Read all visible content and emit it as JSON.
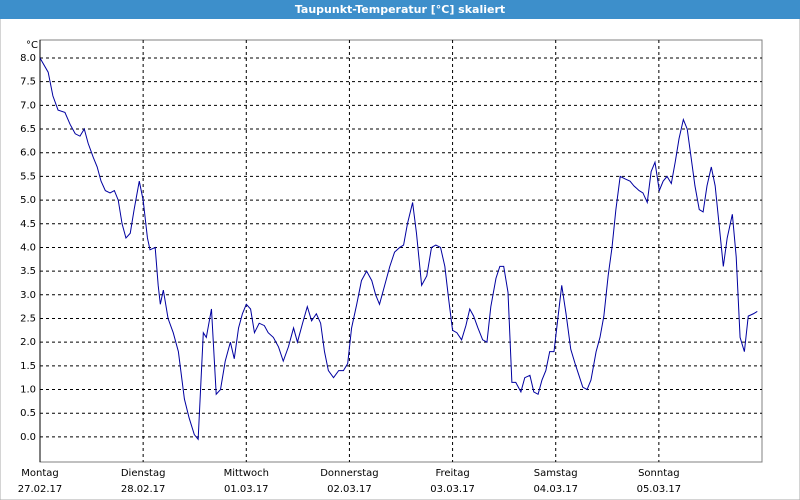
{
  "chart_data": {
    "type": "line",
    "title": "Taupunkt-Temperatur [°C] skaliert",
    "y_unit": "°C",
    "xlim": [
      0,
      168
    ],
    "xticks": [
      {
        "value": 0,
        "label": "Montag"
      },
      {
        "value": 24,
        "label": "Dienstag"
      },
      {
        "value": 48,
        "label": "Mittwoch"
      },
      {
        "value": 72,
        "label": "Donnerstag"
      },
      {
        "value": 96,
        "label": "Freitag"
      },
      {
        "value": 120,
        "label": "Samstag"
      },
      {
        "value": 144,
        "label": "Sonntag"
      }
    ],
    "xtick_dates": [
      "27.02.17",
      "28.02.17",
      "01.03.17",
      "02.03.17",
      "03.03.17",
      "04.03.17",
      "05.03.17"
    ],
    "ylim": [
      -0.53,
      8.38
    ],
    "yticks": [
      {
        "value": 0,
        "label": "0.0"
      },
      {
        "value": 0.5,
        "label": "0.5"
      },
      {
        "value": 1,
        "label": "1.0"
      },
      {
        "value": 1.5,
        "label": "1.5"
      },
      {
        "value": 2,
        "label": "2.0"
      },
      {
        "value": 2.5,
        "label": "2.5"
      },
      {
        "value": 3,
        "label": "3.0"
      },
      {
        "value": 3.5,
        "label": "3.5"
      },
      {
        "value": 4,
        "label": "4.0"
      },
      {
        "value": 4.5,
        "label": "4.5"
      },
      {
        "value": 5,
        "label": "5.0"
      },
      {
        "value": 5.5,
        "label": "5.5"
      },
      {
        "value": 6,
        "label": "6.0"
      },
      {
        "value": 6.5,
        "label": "6.5"
      },
      {
        "value": 7,
        "label": "7.0"
      },
      {
        "value": 7.5,
        "label": "7.5"
      },
      {
        "value": 8,
        "label": "8.0"
      }
    ],
    "grid": true,
    "x": [
      0,
      1.9,
      3.0,
      4.2,
      5.8,
      7.0,
      8.2,
      9.3,
      10.3,
      11.2,
      12.4,
      13.3,
      14.2,
      15.2,
      16.3,
      17.3,
      18.2,
      19.1,
      20.0,
      21.0,
      21.9,
      23.1,
      24.0,
      25.0,
      25.6,
      26.8,
      27.5,
      28.0,
      28.7,
      29.8,
      31.0,
      32.2,
      33.6,
      34.7,
      35.9,
      36.8,
      38.0,
      38.7,
      39.9,
      41.0,
      42.0,
      43.1,
      44.3,
      45.2,
      46.2,
      47.1,
      48.0,
      49.0,
      49.9,
      51.0,
      52.2,
      53.1,
      54.3,
      55.5,
      56.6,
      57.8,
      59.0,
      59.9,
      61.1,
      62.2,
      63.2,
      64.3,
      65.3,
      66.2,
      67.1,
      68.3,
      69.5,
      70.6,
      71.6,
      72.5,
      73.7,
      74.8,
      76.0,
      77.2,
      78.1,
      79.0,
      80.2,
      81.4,
      82.5,
      83.7,
      84.6,
      85.5,
      86.7,
      87.6,
      88.8,
      90.0,
      91.1,
      92.1,
      93.2,
      94.2,
      95.1,
      96.0,
      97.0,
      98.1,
      99.1,
      100.0,
      100.9,
      101.9,
      103.0,
      104.0,
      104.9,
      106.1,
      107.0,
      107.9,
      108.9,
      109.8,
      110.7,
      111.9,
      112.8,
      114.0,
      114.9,
      115.9,
      116.8,
      117.7,
      118.6,
      119.6,
      120.5,
      121.4,
      122.4,
      123.5,
      124.5,
      125.4,
      126.3,
      127.3,
      128.2,
      129.4,
      130.3,
      131.2,
      132.2,
      133.1,
      134.0,
      135.0,
      136.1,
      137.3,
      138.2,
      139.4,
      140.3,
      141.3,
      142.2,
      143.1,
      144.1,
      145.0,
      145.9,
      146.9,
      147.8,
      148.7,
      149.7,
      150.6,
      151.5,
      152.4,
      153.4,
      154.3,
      155.2,
      156.2,
      157.1,
      158.0,
      159.0,
      159.9,
      161.1,
      162.0,
      162.9,
      163.9,
      164.8,
      166.0,
      166.9
    ],
    "series": [
      {
        "name": "Taupunkt-Temperatur",
        "color": "#0000a0",
        "values": [
          8.0,
          7.7,
          7.2,
          6.9,
          6.85,
          6.6,
          6.4,
          6.35,
          6.5,
          6.2,
          5.9,
          5.7,
          5.4,
          5.2,
          5.15,
          5.2,
          5.0,
          4.5,
          4.2,
          4.3,
          4.8,
          5.4,
          5.0,
          4.2,
          3.95,
          4.0,
          3.2,
          2.8,
          3.1,
          2.5,
          2.2,
          1.8,
          0.8,
          0.4,
          0.05,
          -0.05,
          2.2,
          2.1,
          2.7,
          0.9,
          1.0,
          1.6,
          2.0,
          1.65,
          2.3,
          2.6,
          2.8,
          2.7,
          2.2,
          2.4,
          2.35,
          2.2,
          2.1,
          1.9,
          1.6,
          1.9,
          2.3,
          2.0,
          2.4,
          2.75,
          2.45,
          2.6,
          2.4,
          1.8,
          1.4,
          1.25,
          1.4,
          1.4,
          1.55,
          2.3,
          2.8,
          3.3,
          3.5,
          3.3,
          3.0,
          2.8,
          3.2,
          3.6,
          3.9,
          4.0,
          4.05,
          4.5,
          4.95,
          4.3,
          3.2,
          3.4,
          4.0,
          4.05,
          4.0,
          3.6,
          2.9,
          2.25,
          2.2,
          2.05,
          2.35,
          2.7,
          2.55,
          2.3,
          2.05,
          2.0,
          2.75,
          3.35,
          3.6,
          3.6,
          3.05,
          1.15,
          1.15,
          0.95,
          1.25,
          1.3,
          0.95,
          0.9,
          1.2,
          1.4,
          1.8,
          1.8,
          2.5,
          3.2,
          2.6,
          1.85,
          1.55,
          1.3,
          1.05,
          1.0,
          1.2,
          1.8,
          2.1,
          2.55,
          3.4,
          4.0,
          4.8,
          5.5,
          5.45,
          5.4,
          5.3,
          5.2,
          5.15,
          4.95,
          5.6,
          5.8,
          5.2,
          5.4,
          5.5,
          5.35,
          5.8,
          6.3,
          6.7,
          6.5,
          5.9,
          5.3,
          4.8,
          4.75,
          5.3,
          5.7,
          5.3,
          4.5,
          3.6,
          4.2,
          4.7,
          3.8,
          2.1,
          1.8,
          2.55,
          2.6,
          2.65
        ]
      }
    ]
  }
}
